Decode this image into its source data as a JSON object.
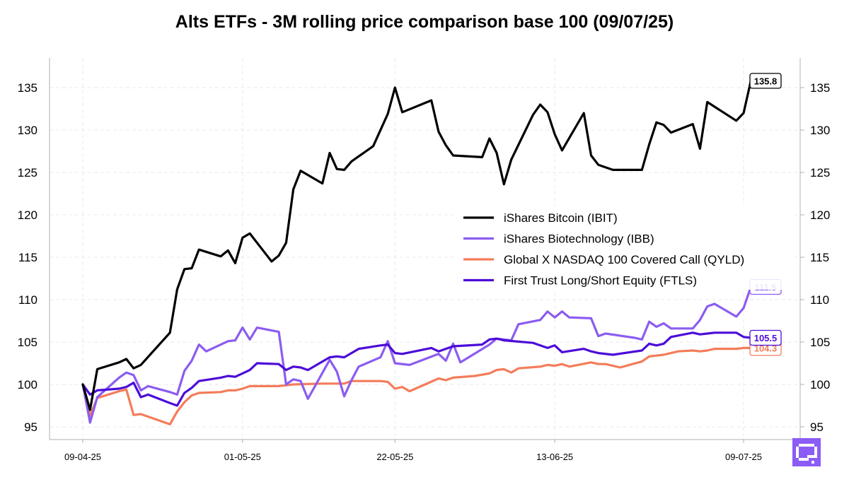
{
  "chart_data": {
    "type": "line",
    "title": "Alts ETFs - 3M rolling price comparison base 100 (09/07/25)",
    "xlabel": "",
    "ylabel": "",
    "x_start": "2025-04-09",
    "x_end": "2025-07-09",
    "x_ticks": [
      "09-04-25",
      "01-05-25",
      "22-05-25",
      "13-06-25",
      "09-07-25"
    ],
    "x_tick_dates": [
      "2025-04-09",
      "2025-05-01",
      "2025-05-22",
      "2025-06-13",
      "2025-07-09"
    ],
    "ylim": [
      93.5,
      138.5
    ],
    "y_ticks": [
      95,
      100,
      105,
      110,
      115,
      120,
      125,
      130,
      135
    ],
    "grid": true,
    "legend_position": "right",
    "series": [
      {
        "name": "iShares Bitcoin (IBIT)",
        "color": "#000000",
        "end_label": "135.8",
        "points": [
          [
            "2025-04-09",
            100.0
          ],
          [
            "2025-04-10",
            97.0
          ],
          [
            "2025-04-11",
            101.8
          ],
          [
            "2025-04-14",
            102.6
          ],
          [
            "2025-04-15",
            103.0
          ],
          [
            "2025-04-16",
            101.9
          ],
          [
            "2025-04-17",
            102.3
          ],
          [
            "2025-04-21",
            106.1
          ],
          [
            "2025-04-22",
            111.2
          ],
          [
            "2025-04-23",
            113.6
          ],
          [
            "2025-04-24",
            113.7
          ],
          [
            "2025-04-25",
            115.9
          ],
          [
            "2025-04-28",
            115.1
          ],
          [
            "2025-04-29",
            115.8
          ],
          [
            "2025-04-30",
            114.3
          ],
          [
            "2025-05-01",
            117.3
          ],
          [
            "2025-05-02",
            117.8
          ],
          [
            "2025-05-05",
            114.5
          ],
          [
            "2025-05-06",
            115.2
          ],
          [
            "2025-05-07",
            116.7
          ],
          [
            "2025-05-08",
            123.0
          ],
          [
            "2025-05-09",
            125.2
          ],
          [
            "2025-05-12",
            123.7
          ],
          [
            "2025-05-13",
            127.3
          ],
          [
            "2025-05-14",
            125.4
          ],
          [
            "2025-05-15",
            125.3
          ],
          [
            "2025-05-16",
            126.3
          ],
          [
            "2025-05-19",
            128.1
          ],
          [
            "2025-05-21",
            131.9
          ],
          [
            "2025-05-22",
            135.0
          ],
          [
            "2025-05-23",
            132.1
          ],
          [
            "2025-05-27",
            133.5
          ],
          [
            "2025-05-28",
            129.8
          ],
          [
            "2025-05-29",
            128.2
          ],
          [
            "2025-05-30",
            127.0
          ],
          [
            "2025-06-03",
            126.8
          ],
          [
            "2025-06-04",
            129.0
          ],
          [
            "2025-06-05",
            127.3
          ],
          [
            "2025-06-06",
            123.6
          ],
          [
            "2025-06-07",
            126.5
          ],
          [
            "2025-06-10",
            131.8
          ],
          [
            "2025-06-11",
            133.0
          ],
          [
            "2025-06-12",
            132.1
          ],
          [
            "2025-06-13",
            129.5
          ],
          [
            "2025-06-14",
            127.6
          ],
          [
            "2025-06-17",
            132.0
          ],
          [
            "2025-06-18",
            127.0
          ],
          [
            "2025-06-19",
            125.9
          ],
          [
            "2025-06-21",
            125.3
          ],
          [
            "2025-06-25",
            125.3
          ],
          [
            "2025-06-26",
            128.3
          ],
          [
            "2025-06-27",
            130.9
          ],
          [
            "2025-06-28",
            130.6
          ],
          [
            "2025-06-29",
            129.7
          ],
          [
            "2025-07-02",
            130.7
          ],
          [
            "2025-07-03",
            127.8
          ],
          [
            "2025-07-04",
            133.3
          ],
          [
            "2025-07-08",
            131.1
          ],
          [
            "2025-07-09",
            132.0
          ],
          [
            "2025-07-10",
            135.8
          ]
        ]
      },
      {
        "name": "iShares Biotechnology (IBB)",
        "color": "#8B5CF0",
        "end_label": "111.5",
        "points": [
          [
            "2025-04-09",
            100.0
          ],
          [
            "2025-04-10",
            95.5
          ],
          [
            "2025-04-11",
            98.5
          ],
          [
            "2025-04-14",
            100.8
          ],
          [
            "2025-04-15",
            101.4
          ],
          [
            "2025-04-16",
            101.1
          ],
          [
            "2025-04-17",
            99.3
          ],
          [
            "2025-04-18",
            99.8
          ],
          [
            "2025-04-21",
            99.1
          ],
          [
            "2025-04-22",
            98.8
          ],
          [
            "2025-04-23",
            101.6
          ],
          [
            "2025-04-24",
            102.8
          ],
          [
            "2025-04-25",
            104.7
          ],
          [
            "2025-04-26",
            103.9
          ],
          [
            "2025-04-29",
            105.1
          ],
          [
            "2025-04-30",
            105.2
          ],
          [
            "2025-05-01",
            106.7
          ],
          [
            "2025-05-02",
            105.3
          ],
          [
            "2025-05-03",
            106.7
          ],
          [
            "2025-05-06",
            106.2
          ],
          [
            "2025-05-07",
            100.0
          ],
          [
            "2025-05-08",
            100.6
          ],
          [
            "2025-05-09",
            100.4
          ],
          [
            "2025-05-10",
            98.3
          ],
          [
            "2025-05-13",
            102.9
          ],
          [
            "2025-05-14",
            101.5
          ],
          [
            "2025-05-15",
            98.6
          ],
          [
            "2025-05-16",
            100.5
          ],
          [
            "2025-05-17",
            102.1
          ],
          [
            "2025-05-20",
            103.2
          ],
          [
            "2025-05-21",
            105.1
          ],
          [
            "2025-05-22",
            102.5
          ],
          [
            "2025-05-24",
            102.3
          ],
          [
            "2025-05-28",
            103.6
          ],
          [
            "2025-05-29",
            102.8
          ],
          [
            "2025-05-30",
            104.8
          ],
          [
            "2025-05-31",
            102.6
          ],
          [
            "2025-06-04",
            104.7
          ],
          [
            "2025-06-05",
            105.4
          ],
          [
            "2025-06-07",
            105.2
          ],
          [
            "2025-06-08",
            107.1
          ],
          [
            "2025-06-11",
            107.6
          ],
          [
            "2025-06-12",
            108.6
          ],
          [
            "2025-06-13",
            107.9
          ],
          [
            "2025-06-14",
            108.6
          ],
          [
            "2025-06-15",
            107.9
          ],
          [
            "2025-06-18",
            107.8
          ],
          [
            "2025-06-19",
            105.7
          ],
          [
            "2025-06-20",
            106.0
          ],
          [
            "2025-06-24",
            105.5
          ],
          [
            "2025-06-25",
            105.3
          ],
          [
            "2025-06-26",
            107.4
          ],
          [
            "2025-06-27",
            106.8
          ],
          [
            "2025-06-28",
            107.2
          ],
          [
            "2025-06-29",
            106.6
          ],
          [
            "2025-07-02",
            106.6
          ],
          [
            "2025-07-03",
            107.6
          ],
          [
            "2025-07-04",
            109.2
          ],
          [
            "2025-07-05",
            109.5
          ],
          [
            "2025-07-08",
            108.0
          ],
          [
            "2025-07-09",
            109.0
          ],
          [
            "2025-07-10",
            111.5
          ]
        ]
      },
      {
        "name": "Global X NASDAQ 100 Covered Call (QYLD)",
        "color": "#F47C5A",
        "end_label": "104.3",
        "points": [
          [
            "2025-04-09",
            100.0
          ],
          [
            "2025-04-10",
            96.3
          ],
          [
            "2025-04-11",
            98.4
          ],
          [
            "2025-04-14",
            99.2
          ],
          [
            "2025-04-15",
            99.4
          ],
          [
            "2025-04-16",
            96.4
          ],
          [
            "2025-04-17",
            96.5
          ],
          [
            "2025-04-21",
            95.3
          ],
          [
            "2025-04-22",
            96.8
          ],
          [
            "2025-04-23",
            97.9
          ],
          [
            "2025-04-24",
            98.7
          ],
          [
            "2025-04-25",
            99.0
          ],
          [
            "2025-04-28",
            99.1
          ],
          [
            "2025-04-29",
            99.3
          ],
          [
            "2025-04-30",
            99.3
          ],
          [
            "2025-05-01",
            99.5
          ],
          [
            "2025-05-02",
            99.8
          ],
          [
            "2025-05-05",
            99.8
          ],
          [
            "2025-05-06",
            99.8
          ],
          [
            "2025-05-07",
            99.9
          ],
          [
            "2025-05-08",
            100.0
          ],
          [
            "2025-05-12",
            100.1
          ],
          [
            "2025-05-15",
            100.1
          ],
          [
            "2025-05-16",
            100.4
          ],
          [
            "2025-05-19",
            100.4
          ],
          [
            "2025-05-20",
            100.4
          ],
          [
            "2025-05-21",
            100.3
          ],
          [
            "2025-05-22",
            99.5
          ],
          [
            "2025-05-23",
            99.7
          ],
          [
            "2025-05-24",
            99.2
          ],
          [
            "2025-05-28",
            100.7
          ],
          [
            "2025-05-29",
            100.5
          ],
          [
            "2025-05-30",
            100.8
          ],
          [
            "2025-06-02",
            101.0
          ],
          [
            "2025-06-04",
            101.3
          ],
          [
            "2025-06-05",
            101.7
          ],
          [
            "2025-06-06",
            101.8
          ],
          [
            "2025-06-07",
            101.4
          ],
          [
            "2025-06-08",
            101.9
          ],
          [
            "2025-06-11",
            102.1
          ],
          [
            "2025-06-12",
            102.3
          ],
          [
            "2025-06-13",
            102.2
          ],
          [
            "2025-06-14",
            102.4
          ],
          [
            "2025-06-15",
            102.1
          ],
          [
            "2025-06-18",
            102.6
          ],
          [
            "2025-06-19",
            102.4
          ],
          [
            "2025-06-20",
            102.4
          ],
          [
            "2025-06-22",
            102.0
          ],
          [
            "2025-06-25",
            102.7
          ],
          [
            "2025-06-26",
            103.3
          ],
          [
            "2025-06-28",
            103.5
          ],
          [
            "2025-06-29",
            103.7
          ],
          [
            "2025-06-30",
            103.9
          ],
          [
            "2025-07-02",
            104.0
          ],
          [
            "2025-07-03",
            103.9
          ],
          [
            "2025-07-04",
            104.0
          ],
          [
            "2025-07-05",
            104.2
          ],
          [
            "2025-07-08",
            104.2
          ],
          [
            "2025-07-09",
            104.3
          ],
          [
            "2025-07-10",
            104.3
          ]
        ]
      },
      {
        "name": "First Trust Long/Short Equity (FTLS)",
        "color": "#4C0CD8",
        "end_label": "105.5",
        "points": [
          [
            "2025-04-09",
            100.0
          ],
          [
            "2025-04-10",
            98.8
          ],
          [
            "2025-04-11",
            99.3
          ],
          [
            "2025-04-14",
            99.5
          ],
          [
            "2025-04-15",
            99.7
          ],
          [
            "2025-04-16",
            100.2
          ],
          [
            "2025-04-17",
            98.5
          ],
          [
            "2025-04-18",
            98.8
          ],
          [
            "2025-04-21",
            97.8
          ],
          [
            "2025-04-22",
            97.5
          ],
          [
            "2025-04-23",
            99.0
          ],
          [
            "2025-04-24",
            99.6
          ],
          [
            "2025-04-25",
            100.4
          ],
          [
            "2025-04-28",
            100.8
          ],
          [
            "2025-04-29",
            101.0
          ],
          [
            "2025-04-30",
            100.9
          ],
          [
            "2025-05-01",
            101.3
          ],
          [
            "2025-05-02",
            101.7
          ],
          [
            "2025-05-03",
            102.5
          ],
          [
            "2025-05-06",
            102.4
          ],
          [
            "2025-05-07",
            101.7
          ],
          [
            "2025-05-08",
            102.1
          ],
          [
            "2025-05-09",
            102.0
          ],
          [
            "2025-05-10",
            101.7
          ],
          [
            "2025-05-13",
            103.2
          ],
          [
            "2025-05-14",
            103.3
          ],
          [
            "2025-05-15",
            103.2
          ],
          [
            "2025-05-16",
            103.7
          ],
          [
            "2025-05-17",
            104.2
          ],
          [
            "2025-05-20",
            104.6
          ],
          [
            "2025-05-21",
            104.7
          ],
          [
            "2025-05-22",
            103.7
          ],
          [
            "2025-05-23",
            103.6
          ],
          [
            "2025-05-27",
            104.3
          ],
          [
            "2025-05-28",
            103.9
          ],
          [
            "2025-05-29",
            104.2
          ],
          [
            "2025-05-30",
            104.5
          ],
          [
            "2025-06-03",
            104.7
          ],
          [
            "2025-06-04",
            105.3
          ],
          [
            "2025-06-05",
            105.4
          ],
          [
            "2025-06-06",
            105.2
          ],
          [
            "2025-06-10",
            104.9
          ],
          [
            "2025-06-11",
            104.6
          ],
          [
            "2025-06-12",
            104.3
          ],
          [
            "2025-06-13",
            104.6
          ],
          [
            "2025-06-14",
            103.8
          ],
          [
            "2025-06-17",
            104.2
          ],
          [
            "2025-06-18",
            103.9
          ],
          [
            "2025-06-19",
            103.7
          ],
          [
            "2025-06-21",
            103.5
          ],
          [
            "2025-06-25",
            104.0
          ],
          [
            "2025-06-26",
            104.8
          ],
          [
            "2025-06-27",
            104.6
          ],
          [
            "2025-06-28",
            104.8
          ],
          [
            "2025-06-29",
            105.6
          ],
          [
            "2025-07-02",
            106.1
          ],
          [
            "2025-07-03",
            105.9
          ],
          [
            "2025-07-04",
            106.0
          ],
          [
            "2025-07-05",
            106.1
          ],
          [
            "2025-07-08",
            106.1
          ],
          [
            "2025-07-09",
            105.6
          ],
          [
            "2025-07-10",
            105.5
          ]
        ]
      }
    ]
  },
  "colors": {
    "grid": "#e9e9e9",
    "axis": "#b0b0b0",
    "logo": "#8b5cf6"
  },
  "logo_icon": "qr-style-logo-icon"
}
